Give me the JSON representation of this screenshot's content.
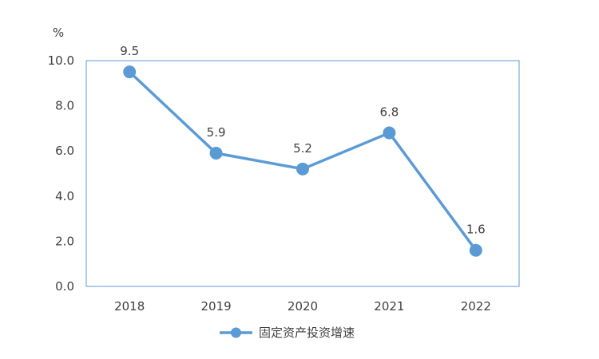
{
  "chart_data": {
    "type": "line",
    "categories": [
      "2018",
      "2019",
      "2020",
      "2021",
      "2022"
    ],
    "series": [
      {
        "name": "固定资产投资增速",
        "values": [
          9.5,
          5.9,
          5.2,
          6.8,
          1.6
        ],
        "color": "#5B9BD5"
      }
    ],
    "y_unit": "%",
    "ylim": [
      0,
      10
    ],
    "y_ticks": [
      "0.0",
      "2.0",
      "4.0",
      "6.0",
      "8.0",
      "10.0"
    ],
    "data_labels": [
      "9.5",
      "5.9",
      "5.2",
      "6.8",
      "1.6"
    ],
    "grid": false,
    "legend_position": "bottom",
    "plot_border_color": "#5B9BD5",
    "text_color": "#404040"
  }
}
